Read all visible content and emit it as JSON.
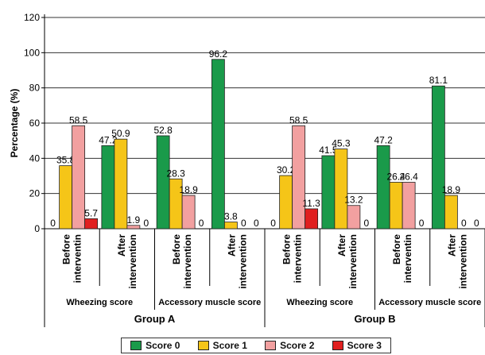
{
  "chart_data": {
    "type": "bar",
    "ylabel": "Percentage (%)",
    "ylim": [
      0,
      120
    ],
    "yticks": [
      0,
      20,
      40,
      60,
      80,
      100,
      120
    ],
    "grid": true,
    "legend_position": "bottom",
    "groups": [
      {
        "label": "Group A",
        "subgroups": [
          {
            "label": "Wheezing score",
            "categories": [
              {
                "label": "Before intervention",
                "line1": "Before",
                "line2": "interventin",
                "values": [
                  0,
                  35.8,
                  58.5,
                  5.7
                ],
                "labels": [
                  "0",
                  "35.8",
                  "58.5",
                  "5.7"
                ]
              },
              {
                "label": "After intervention",
                "line1": "After",
                "line2": "intervention",
                "values": [
                  47.2,
                  50.9,
                  1.9,
                  0
                ],
                "labels": [
                  "47.2",
                  "50.9",
                  "1.9",
                  "0"
                ]
              }
            ]
          },
          {
            "label": "Accessory muscle score",
            "categories": [
              {
                "label": "Before intervention",
                "line1": "Before",
                "line2": "intervention",
                "values": [
                  52.8,
                  28.3,
                  18.9,
                  0
                ],
                "labels": [
                  "52.8",
                  "28.3",
                  "18.9",
                  "0"
                ]
              },
              {
                "label": "After intervention",
                "line1": "After",
                "line2": "intervention",
                "values": [
                  96.2,
                  3.8,
                  0,
                  0
                ],
                "labels": [
                  "96.2",
                  "3.8",
                  "0",
                  "0"
                ]
              }
            ]
          }
        ]
      },
      {
        "label": "Group B",
        "subgroups": [
          {
            "label": "Wheezing score",
            "categories": [
              {
                "label": "Before intervention",
                "line1": "Before",
                "line2": "interventin",
                "values": [
                  0,
                  30.2,
                  58.5,
                  11.3
                ],
                "labels": [
                  "0",
                  "30.2",
                  "58.5",
                  "11.3"
                ]
              },
              {
                "label": "After intervention",
                "line1": "After",
                "line2": "intervention",
                "values": [
                  41.5,
                  45.3,
                  13.2,
                  0
                ],
                "labels": [
                  "41.5",
                  "45.3",
                  "13.2",
                  "0"
                ]
              }
            ]
          },
          {
            "label": "Accessory muscle score",
            "categories": [
              {
                "label": "Before intervention",
                "line1": "Before",
                "line2": "interventin",
                "values": [
                  47.2,
                  26.4,
                  26.4,
                  0
                ],
                "labels": [
                  "47.2",
                  "26.4",
                  "26.4",
                  "0"
                ]
              },
              {
                "label": "After intervention",
                "line1": "After",
                "line2": "intervention",
                "values": [
                  81.1,
                  18.9,
                  0,
                  0
                ],
                "labels": [
                  "81.1",
                  "18.9",
                  "0",
                  "0"
                ]
              }
            ]
          }
        ]
      }
    ],
    "series": [
      {
        "name": "Score 0",
        "color": "#1a9a4a"
      },
      {
        "name": "Score 1",
        "color": "#f5c518"
      },
      {
        "name": "Score 2",
        "color": "#f2a0a0"
      },
      {
        "name": "Score 3",
        "color": "#e02020"
      }
    ]
  }
}
